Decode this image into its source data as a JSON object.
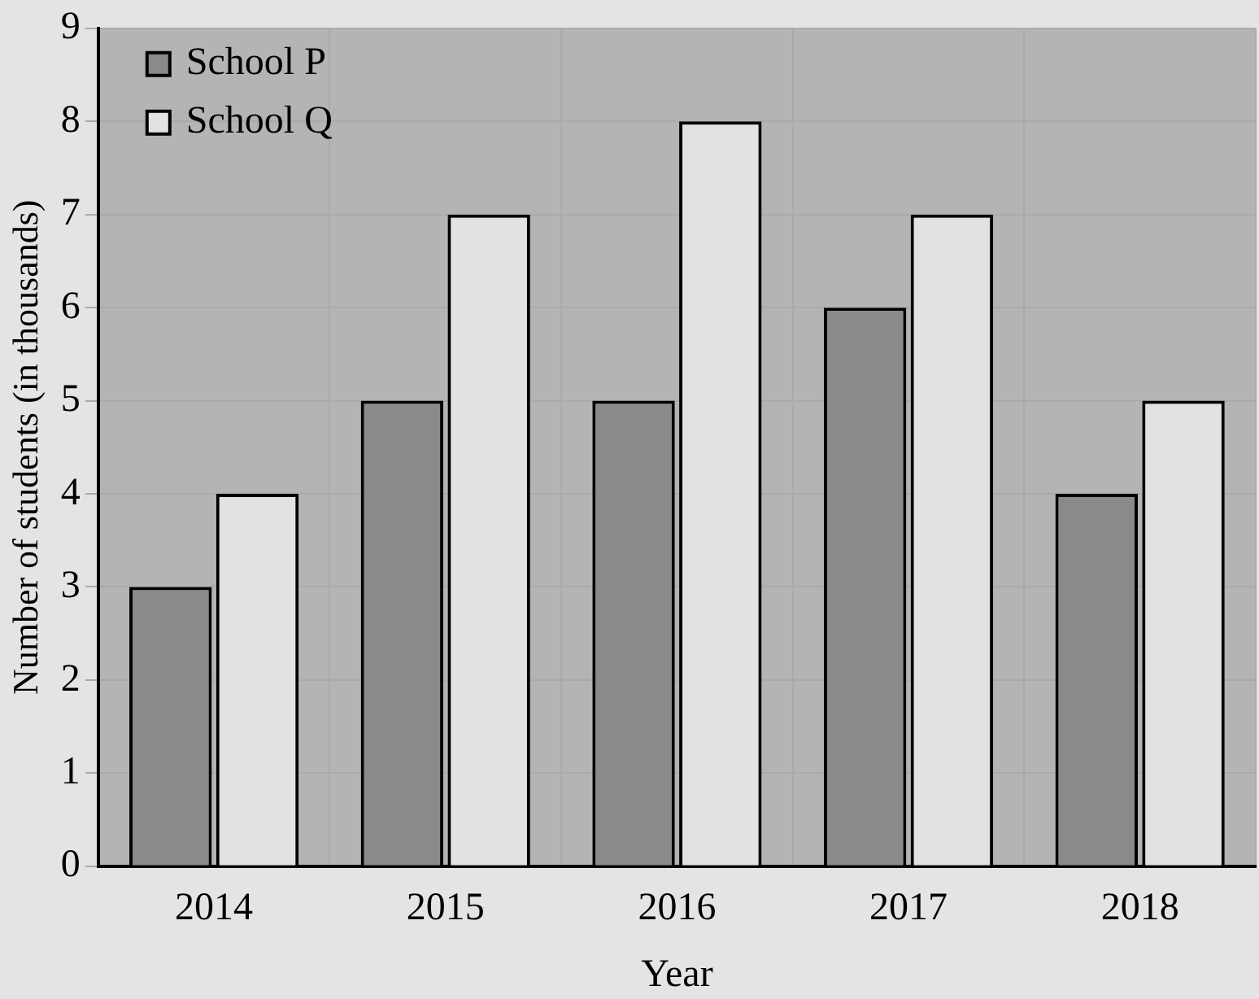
{
  "chart_data": {
    "type": "bar",
    "xlabel": "Year",
    "ylabel": "Number of students (in thousands)",
    "categories": [
      "2014",
      "2015",
      "2016",
      "2017",
      "2018"
    ],
    "series": [
      {
        "name": "School P",
        "color": "#8a8a8a",
        "values": [
          3,
          5,
          5,
          6,
          4
        ]
      },
      {
        "name": "School Q",
        "color": "#e2e2e2",
        "values": [
          4,
          7,
          8,
          7,
          5
        ]
      }
    ],
    "ylim": [
      0,
      9
    ],
    "yticks": [
      0,
      1,
      2,
      3,
      4,
      5,
      6,
      7,
      8,
      9
    ],
    "grid": true,
    "legend": "top left"
  }
}
